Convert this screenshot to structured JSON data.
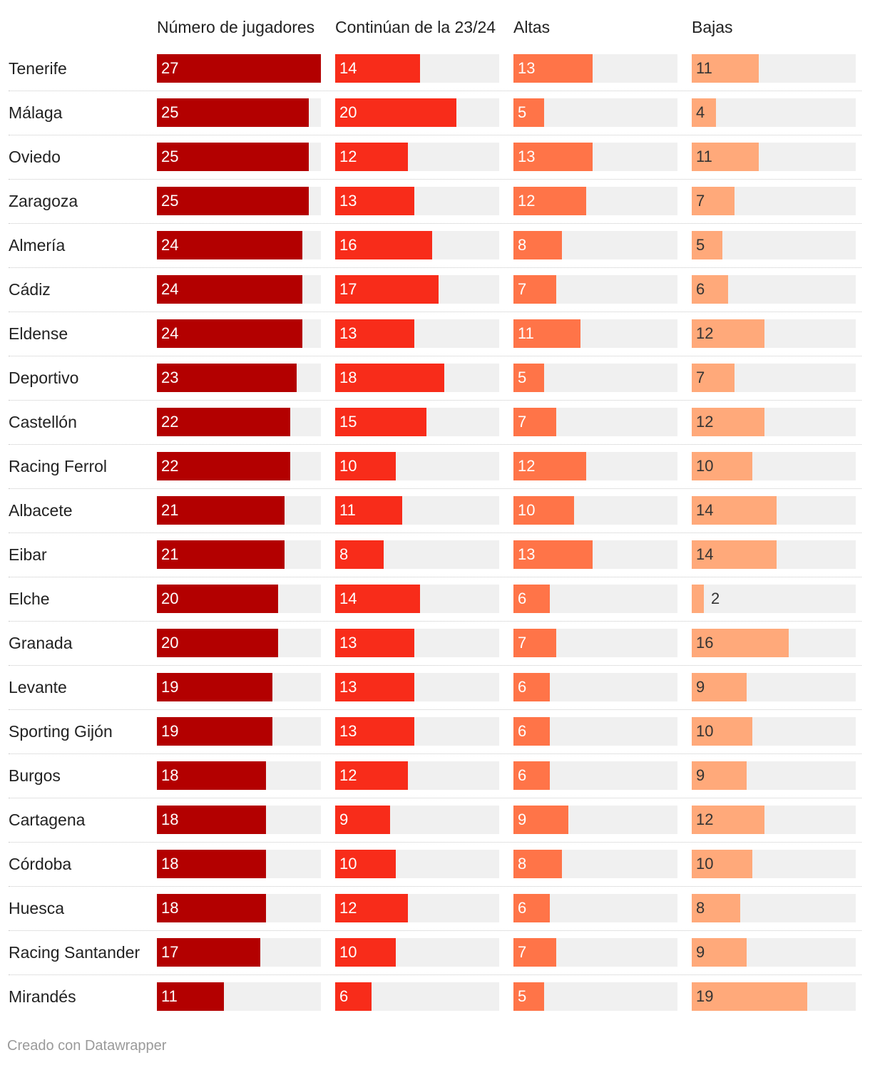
{
  "chart_data": {
    "type": "table",
    "columns": [
      "Número de jugadores",
      "Continúan de la 23/24",
      "Altas",
      "Bajas"
    ],
    "max_values": [
      27,
      27,
      27,
      27
    ],
    "colors": [
      "#b30000",
      "#f82c1a",
      "#ff7448",
      "#ffa97a"
    ],
    "rows": [
      {
        "team": "Tenerife",
        "values": [
          27,
          14,
          13,
          11
        ]
      },
      {
        "team": "Málaga",
        "values": [
          25,
          20,
          5,
          4
        ]
      },
      {
        "team": "Oviedo",
        "values": [
          25,
          12,
          13,
          11
        ]
      },
      {
        "team": "Zaragoza",
        "values": [
          25,
          13,
          12,
          7
        ]
      },
      {
        "team": "Almería",
        "values": [
          24,
          16,
          8,
          5
        ]
      },
      {
        "team": "Cádiz",
        "values": [
          24,
          17,
          7,
          6
        ]
      },
      {
        "team": "Eldense",
        "values": [
          24,
          13,
          11,
          12
        ]
      },
      {
        "team": "Deportivo",
        "values": [
          23,
          18,
          5,
          7
        ]
      },
      {
        "team": "Castellón",
        "values": [
          22,
          15,
          7,
          12
        ]
      },
      {
        "team": "Racing Ferrol",
        "values": [
          22,
          10,
          12,
          10
        ]
      },
      {
        "team": "Albacete",
        "values": [
          21,
          11,
          10,
          14
        ]
      },
      {
        "team": "Eibar",
        "values": [
          21,
          8,
          13,
          14
        ]
      },
      {
        "team": "Elche",
        "values": [
          20,
          14,
          6,
          2
        ]
      },
      {
        "team": "Granada",
        "values": [
          20,
          13,
          7,
          16
        ]
      },
      {
        "team": "Levante",
        "values": [
          19,
          13,
          6,
          9
        ]
      },
      {
        "team": "Sporting Gijón",
        "values": [
          19,
          13,
          6,
          10
        ]
      },
      {
        "team": "Burgos",
        "values": [
          18,
          12,
          6,
          9
        ]
      },
      {
        "team": "Cartagena",
        "values": [
          18,
          9,
          9,
          12
        ]
      },
      {
        "team": "Córdoba",
        "values": [
          18,
          10,
          8,
          10
        ]
      },
      {
        "team": "Huesca",
        "values": [
          18,
          12,
          6,
          8
        ]
      },
      {
        "team": "Racing Santander",
        "values": [
          17,
          10,
          7,
          9
        ]
      },
      {
        "team": "Mirandés",
        "values": [
          11,
          6,
          5,
          19
        ]
      }
    ]
  },
  "footer": "Creado con Datawrapper"
}
